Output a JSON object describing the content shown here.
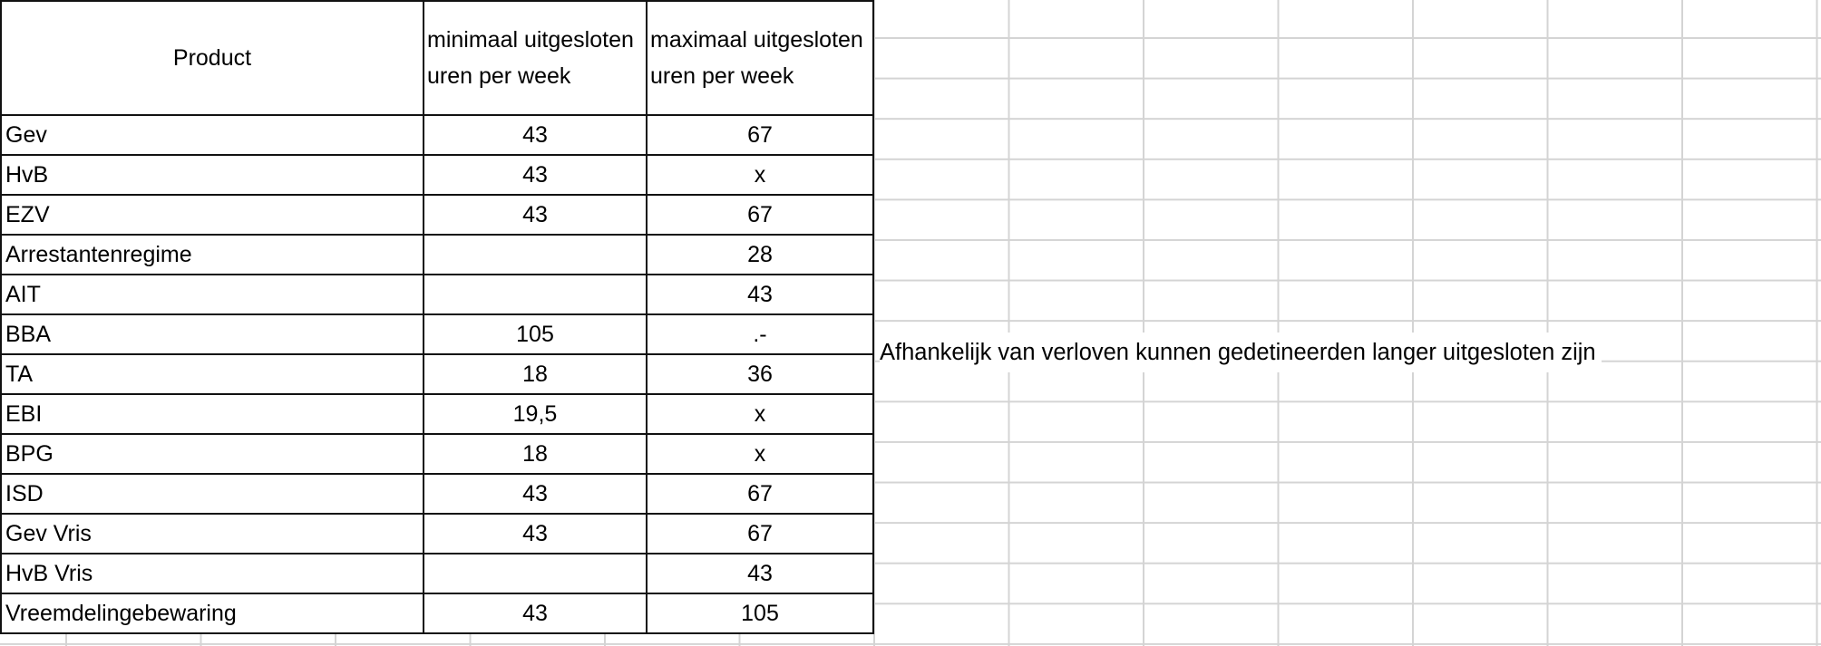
{
  "headers": {
    "product": "Product",
    "min": "minimaal uitgesloten uren per week",
    "max": "maximaal uitgesloten uren per week"
  },
  "rows": [
    {
      "product": "Gev",
      "min": "43",
      "max": "67"
    },
    {
      "product": "HvB",
      "min": "43",
      "max": "x"
    },
    {
      "product": "EZV",
      "min": "43",
      "max": "67"
    },
    {
      "product": "Arrestantenregime",
      "min": "",
      "max": "28"
    },
    {
      "product": "AIT",
      "min": "",
      "max": "43"
    },
    {
      "product": "BBA",
      "min": "105",
      "max": ".-"
    },
    {
      "product": "TA",
      "min": "18",
      "max": "36"
    },
    {
      "product": "EBI",
      "min": "19,5",
      "max": "x"
    },
    {
      "product": "BPG",
      "min": "18",
      "max": "x"
    },
    {
      "product": "ISD",
      "min": "43",
      "max": "67"
    },
    {
      "product": "Gev Vris",
      "min": "43",
      "max": "67"
    },
    {
      "product": "HvB Vris",
      "min": "",
      "max": "43"
    },
    {
      "product": "Vreemdelingebewaring",
      "min": "43",
      "max": "105"
    }
  ],
  "note": "Afhankelijk van verloven kunnen gedetineerden langer uitgesloten zijn"
}
